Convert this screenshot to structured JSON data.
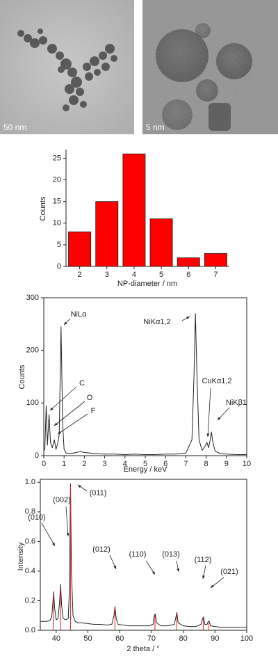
{
  "images": [
    {
      "scale_label": "50 nm"
    },
    {
      "scale_label": "5 nm"
    }
  ],
  "chart_data": [
    {
      "type": "bar",
      "xlabel": "NP-diameter / nm",
      "ylabel": "Counts",
      "categories": [
        "2",
        "3",
        "4",
        "5",
        "6",
        "7"
      ],
      "values": [
        8,
        15,
        26,
        11,
        2,
        3
      ],
      "color": "#ff0000",
      "ylim": [
        0,
        27
      ],
      "yticks": [
        0,
        5,
        10,
        15,
        20,
        25
      ]
    },
    {
      "type": "line",
      "xlabel": "Energy / keV",
      "ylabel": "Counts",
      "series": [
        {
          "color": "#222222",
          "x": [
            0.05,
            0.12,
            0.18,
            0.26,
            0.33,
            0.42,
            0.52,
            0.6,
            0.68,
            0.76,
            0.85,
            0.93,
            1.0,
            1.1,
            1.3,
            1.6,
            1.8,
            2.0,
            2.5,
            3.0,
            3.5,
            4.0,
            4.5,
            5.0,
            5.5,
            6.0,
            6.5,
            7.0,
            7.3,
            7.4,
            7.47,
            7.55,
            7.65,
            7.8,
            7.95,
            8.04,
            8.12,
            8.2,
            8.26,
            8.33,
            8.45,
            8.7,
            9.0,
            9.5,
            10.0
          ],
          "values": [
            10,
            95,
            20,
            78,
            25,
            15,
            30,
            12,
            22,
            40,
            245,
            60,
            12,
            5,
            4,
            6,
            8,
            6,
            4,
            3,
            3,
            2,
            3,
            2,
            2,
            3,
            3,
            5,
            30,
            150,
            270,
            150,
            30,
            10,
            18,
            25,
            15,
            30,
            45,
            25,
            8,
            4,
            3,
            2,
            2
          ]
        }
      ],
      "xlim": [
        0,
        10
      ],
      "xticks": [
        0,
        1,
        2,
        3,
        4,
        5,
        6,
        7,
        8,
        9,
        10
      ],
      "ylim": [
        0,
        300
      ],
      "yticks": [
        0,
        100,
        200,
        300
      ],
      "annotations": [
        "NiLα",
        "NiKα1,2",
        "C",
        "O",
        "F",
        "CuKα1,2",
        "NiKβ1"
      ]
    },
    {
      "type": "line",
      "xlabel": "2 theta / °",
      "ylabel": "Intensity",
      "series": [
        {
          "color": "#222222",
          "x": [
            35,
            36,
            37,
            38,
            38.6,
            39.0,
            39.2,
            39.5,
            40,
            40.6,
            41.1,
            41.4,
            41.7,
            42.2,
            43,
            43.8,
            44.2,
            44.5,
            44.8,
            45.3,
            46,
            47,
            48,
            50,
            52,
            54,
            56,
            57.5,
            58.2,
            58.5,
            58.9,
            59.5,
            61,
            63,
            65,
            67,
            69,
            70.5,
            70.9,
            71.2,
            71.6,
            73,
            75,
            77.2,
            77.7,
            78.0,
            78.4,
            80,
            82,
            84,
            85.6,
            86.1,
            86.4,
            86.8,
            87.5,
            87.9,
            88.2,
            88.6,
            90,
            92,
            94,
            96,
            98,
            100
          ],
          "values": [
            0.06,
            0.06,
            0.06,
            0.065,
            0.09,
            0.2,
            0.26,
            0.15,
            0.07,
            0.08,
            0.2,
            0.31,
            0.17,
            0.08,
            0.07,
            0.08,
            0.3,
            0.99,
            0.4,
            0.1,
            0.06,
            0.05,
            0.05,
            0.045,
            0.04,
            0.04,
            0.035,
            0.04,
            0.1,
            0.16,
            0.08,
            0.04,
            0.035,
            0.03,
            0.03,
            0.03,
            0.03,
            0.04,
            0.1,
            0.11,
            0.05,
            0.03,
            0.03,
            0.04,
            0.09,
            0.12,
            0.05,
            0.03,
            0.025,
            0.025,
            0.04,
            0.08,
            0.09,
            0.04,
            0.04,
            0.06,
            0.06,
            0.03,
            0.025,
            0.02,
            0.02,
            0.02,
            0.02,
            0.02
          ]
        },
        {
          "color": "#e02020",
          "style": "stick",
          "x": [
            39.2,
            41.4,
            44.5,
            58.5,
            71.1,
            78.0,
            86.3,
            88.1
          ],
          "values": [
            0.24,
            0.29,
            0.97,
            0.15,
            0.1,
            0.11,
            0.08,
            0.05
          ]
        }
      ],
      "xlim": [
        35,
        100
      ],
      "xticks": [
        40,
        50,
        60,
        70,
        80,
        90,
        100
      ],
      "ylim": [
        0,
        1.02
      ],
      "yticks": [
        {
          "value": 0,
          "label": "0.0"
        },
        0.2,
        0.4,
        0.6,
        0.8,
        {
          "value": 1,
          "label": "1.0"
        }
      ],
      "annotations": [
        "(010)",
        "(002)",
        "(011)",
        "(012)",
        "(110)",
        "(013)",
        "(112)",
        "(021)"
      ]
    }
  ]
}
